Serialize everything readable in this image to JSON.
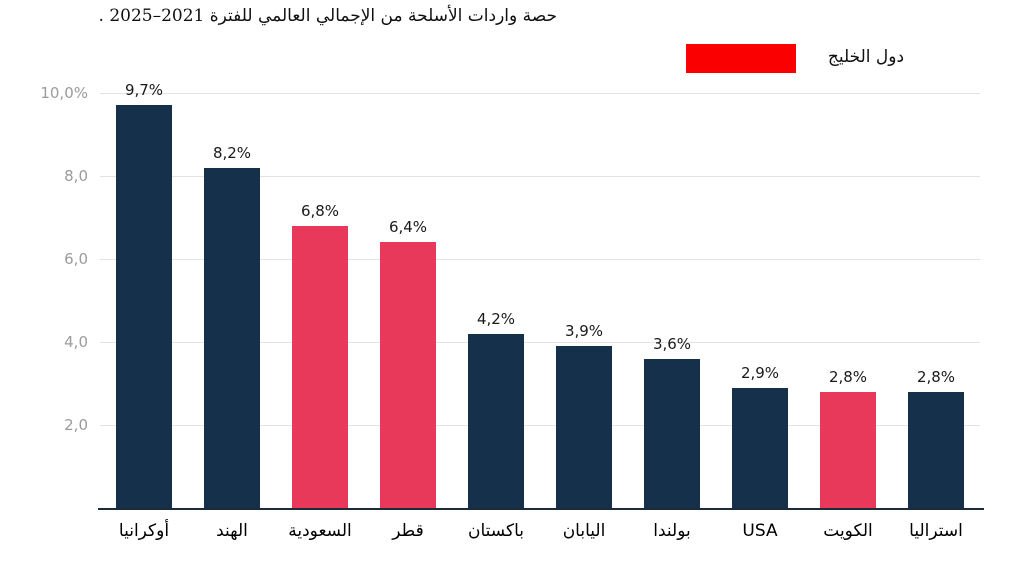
{
  "page": {
    "title": "حصة واردات الأسلحة من الإجمالي العالمي للفترة 2021–2025 ."
  },
  "legend": {
    "label": "دول الخليج",
    "swatch_color": "#fb0000"
  },
  "chart_data": {
    "type": "bar",
    "title": "حصة واردات الأسلحة من الإجمالي العالمي للفترة 2021–2025 .",
    "categories": [
      "أوكرانيا",
      "الهند",
      "السعودية",
      "قطر",
      "باكستان",
      "اليابان",
      "بولندا",
      "USA",
      "الكويت",
      "استراليا"
    ],
    "values": [
      9.7,
      8.2,
      6.8,
      6.4,
      4.2,
      3.9,
      3.6,
      2.9,
      2.8,
      2.8
    ],
    "value_labels": [
      "9,7%",
      "8,2%",
      "6,8%",
      "6,4%",
      "4,2%",
      "3,9%",
      "3,6%",
      "2,9%",
      "2,8%",
      "2,8%"
    ],
    "highlighted": [
      false,
      false,
      true,
      true,
      false,
      false,
      false,
      false,
      true,
      false
    ],
    "colors": {
      "bar": "#14304a",
      "highlight": "#e8395a"
    },
    "legend": {
      "label": "دول الخليج",
      "color": "#fb0000",
      "position": "top-right"
    },
    "xlabel": "",
    "ylabel": "",
    "ylim": [
      0,
      10
    ],
    "yticks": [
      10,
      8,
      6,
      4,
      2
    ],
    "ytick_labels": [
      "10,0%",
      "8,0",
      "6,0",
      "4,0",
      "2,0"
    ],
    "grid": true
  }
}
